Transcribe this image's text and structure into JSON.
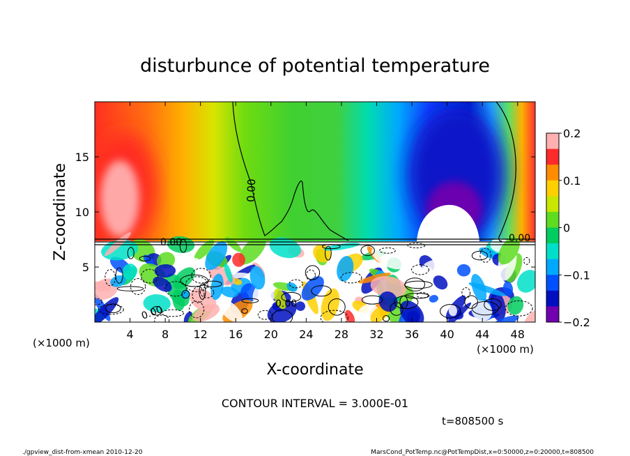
{
  "chart_data": {
    "type": "heatmap",
    "title": "disturbunce of potential temperature",
    "xlabel": "X-coordinate",
    "ylabel": "Z-coordinate",
    "x_unit": "(×1000 m)",
    "y_unit": "(×1000 m)",
    "xlim": [
      0,
      50
    ],
    "ylim": [
      0,
      20
    ],
    "x_ticks": [
      "4",
      "8",
      "12",
      "16",
      "20",
      "24",
      "28",
      "32",
      "36",
      "40",
      "44",
      "48"
    ],
    "y_ticks": [
      "5",
      "10",
      "15"
    ],
    "contour_labels": [
      "0.00",
      "0.00",
      "0.00",
      "0.00",
      "0.00"
    ],
    "colorbar": {
      "range": [
        -0.2,
        0.2
      ],
      "tick_labels": [
        "0.2",
        "0.1",
        "0",
        "−0.1",
        "−0.2"
      ],
      "colors": [
        "#ffb0b0",
        "#ff2a2a",
        "#ff8c00",
        "#ffd000",
        "#c8e600",
        "#5ddc20",
        "#00cc60",
        "#00e0c8",
        "#00a8ff",
        "#0050ff",
        "#0010c0",
        "#7000b0"
      ]
    },
    "features": [
      {
        "name": "warm anomaly",
        "x_center": 4,
        "z_center": 11,
        "value": 0.2
      },
      {
        "name": "cold anomaly",
        "x_center": 39.5,
        "z_center": 12,
        "value": -0.2
      }
    ],
    "contour_interval_text": "CONTOUR INTERVAL = 3.000E-01",
    "time_text": "t=808500 s",
    "footer_left": "./gpview_dist-from-xmean  2010-12-20",
    "footer_right": "MarsCond_PotTemp.nc@PotTempDist,x=0:50000,z=0:20000,t=808500"
  }
}
